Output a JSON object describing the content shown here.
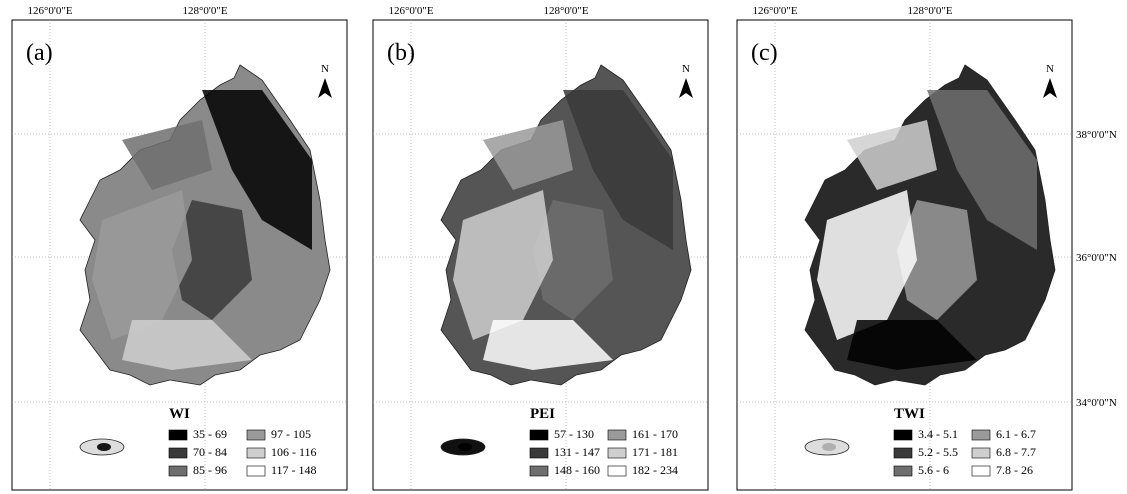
{
  "longitude_labels": [
    "126°0'0\"E",
    "128°0'0\"E"
  ],
  "latitude_labels": [
    "38°0'0\"N",
    "36°0'0\"N",
    "34°0'0\"N"
  ],
  "north_label": "N",
  "panels": [
    {
      "label": "(a)",
      "legend_title": "WI",
      "legend_items": [
        "35 - 69",
        "70 - 84",
        "85 - 96",
        "97 - 105",
        "106 - 116",
        "117 - 148"
      ]
    },
    {
      "label": "(b)",
      "legend_title": "PEI",
      "legend_items": [
        "57 - 130",
        "131 - 147",
        "148 - 160",
        "161 - 170",
        "171 - 181",
        "182 - 234"
      ]
    },
    {
      "label": "(c)",
      "legend_title": "TWI",
      "legend_items": [
        "3.4 - 5.1",
        "5.2 - 5.5",
        "5.6 - 6",
        "6.1 - 6.7",
        "6.8 - 7.7",
        "7.8 - 26"
      ]
    }
  ]
}
